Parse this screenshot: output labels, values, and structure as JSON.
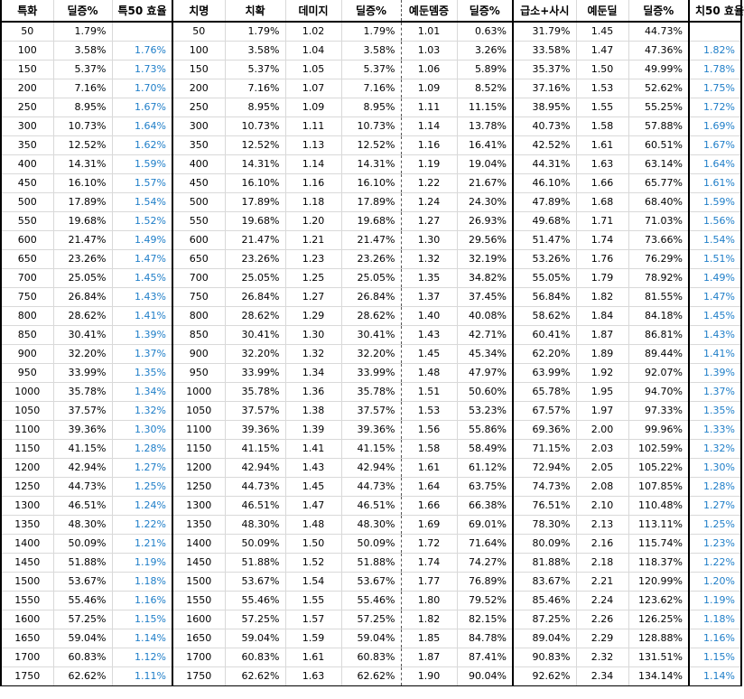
{
  "headers": [
    "특화",
    "딜증%",
    "특50 효율",
    "치명",
    "치확",
    "데미지",
    "딜증%",
    "예둔뎀증",
    "딜증%",
    "급소+사시",
    "예둔딜",
    "딜증%",
    "치50 효율"
  ],
  "rows": [
    [
      "50",
      "1.79%",
      "",
      "50",
      "1.79%",
      "1.02",
      "1.79%",
      "1.01",
      "0.63%",
      "31.79%",
      "1.45",
      "44.73%",
      ""
    ],
    [
      "100",
      "3.58%",
      "1.76%",
      "100",
      "3.58%",
      "1.04",
      "3.58%",
      "1.03",
      "3.26%",
      "33.58%",
      "1.47",
      "47.36%",
      "1.82%"
    ],
    [
      "150",
      "5.37%",
      "1.73%",
      "150",
      "5.37%",
      "1.05",
      "5.37%",
      "1.06",
      "5.89%",
      "35.37%",
      "1.50",
      "49.99%",
      "1.78%"
    ],
    [
      "200",
      "7.16%",
      "1.70%",
      "200",
      "7.16%",
      "1.07",
      "7.16%",
      "1.09",
      "8.52%",
      "37.16%",
      "1.53",
      "52.62%",
      "1.75%"
    ],
    [
      "250",
      "8.95%",
      "1.67%",
      "250",
      "8.95%",
      "1.09",
      "8.95%",
      "1.11",
      "11.15%",
      "38.95%",
      "1.55",
      "55.25%",
      "1.72%"
    ],
    [
      "300",
      "10.73%",
      "1.64%",
      "300",
      "10.73%",
      "1.11",
      "10.73%",
      "1.14",
      "13.78%",
      "40.73%",
      "1.58",
      "57.88%",
      "1.69%"
    ],
    [
      "350",
      "12.52%",
      "1.62%",
      "350",
      "12.52%",
      "1.13",
      "12.52%",
      "1.16",
      "16.41%",
      "42.52%",
      "1.61",
      "60.51%",
      "1.67%"
    ],
    [
      "400",
      "14.31%",
      "1.59%",
      "400",
      "14.31%",
      "1.14",
      "14.31%",
      "1.19",
      "19.04%",
      "44.31%",
      "1.63",
      "63.14%",
      "1.64%"
    ],
    [
      "450",
      "16.10%",
      "1.57%",
      "450",
      "16.10%",
      "1.16",
      "16.10%",
      "1.22",
      "21.67%",
      "46.10%",
      "1.66",
      "65.77%",
      "1.61%"
    ],
    [
      "500",
      "17.89%",
      "1.54%",
      "500",
      "17.89%",
      "1.18",
      "17.89%",
      "1.24",
      "24.30%",
      "47.89%",
      "1.68",
      "68.40%",
      "1.59%"
    ],
    [
      "550",
      "19.68%",
      "1.52%",
      "550",
      "19.68%",
      "1.20",
      "19.68%",
      "1.27",
      "26.93%",
      "49.68%",
      "1.71",
      "71.03%",
      "1.56%"
    ],
    [
      "600",
      "21.47%",
      "1.49%",
      "600",
      "21.47%",
      "1.21",
      "21.47%",
      "1.30",
      "29.56%",
      "51.47%",
      "1.74",
      "73.66%",
      "1.54%"
    ],
    [
      "650",
      "23.26%",
      "1.47%",
      "650",
      "23.26%",
      "1.23",
      "23.26%",
      "1.32",
      "32.19%",
      "53.26%",
      "1.76",
      "76.29%",
      "1.51%"
    ],
    [
      "700",
      "25.05%",
      "1.45%",
      "700",
      "25.05%",
      "1.25",
      "25.05%",
      "1.35",
      "34.82%",
      "55.05%",
      "1.79",
      "78.92%",
      "1.49%"
    ],
    [
      "750",
      "26.84%",
      "1.43%",
      "750",
      "26.84%",
      "1.27",
      "26.84%",
      "1.37",
      "37.45%",
      "56.84%",
      "1.82",
      "81.55%",
      "1.47%"
    ],
    [
      "800",
      "28.62%",
      "1.41%",
      "800",
      "28.62%",
      "1.29",
      "28.62%",
      "1.40",
      "40.08%",
      "58.62%",
      "1.84",
      "84.18%",
      "1.45%"
    ],
    [
      "850",
      "30.41%",
      "1.39%",
      "850",
      "30.41%",
      "1.30",
      "30.41%",
      "1.43",
      "42.71%",
      "60.41%",
      "1.87",
      "86.81%",
      "1.43%"
    ],
    [
      "900",
      "32.20%",
      "1.37%",
      "900",
      "32.20%",
      "1.32",
      "32.20%",
      "1.45",
      "45.34%",
      "62.20%",
      "1.89",
      "89.44%",
      "1.41%"
    ],
    [
      "950",
      "33.99%",
      "1.35%",
      "950",
      "33.99%",
      "1.34",
      "33.99%",
      "1.48",
      "47.97%",
      "63.99%",
      "1.92",
      "92.07%",
      "1.39%"
    ],
    [
      "1000",
      "35.78%",
      "1.34%",
      "1000",
      "35.78%",
      "1.36",
      "35.78%",
      "1.51",
      "50.60%",
      "65.78%",
      "1.95",
      "94.70%",
      "1.37%"
    ],
    [
      "1050",
      "37.57%",
      "1.32%",
      "1050",
      "37.57%",
      "1.38",
      "37.57%",
      "1.53",
      "53.23%",
      "67.57%",
      "1.97",
      "97.33%",
      "1.35%"
    ],
    [
      "1100",
      "39.36%",
      "1.30%",
      "1100",
      "39.36%",
      "1.39",
      "39.36%",
      "1.56",
      "55.86%",
      "69.36%",
      "2.00",
      "99.96%",
      "1.33%"
    ],
    [
      "1150",
      "41.15%",
      "1.28%",
      "1150",
      "41.15%",
      "1.41",
      "41.15%",
      "1.58",
      "58.49%",
      "71.15%",
      "2.03",
      "102.59%",
      "1.32%"
    ],
    [
      "1200",
      "42.94%",
      "1.27%",
      "1200",
      "42.94%",
      "1.43",
      "42.94%",
      "1.61",
      "61.12%",
      "72.94%",
      "2.05",
      "105.22%",
      "1.30%"
    ],
    [
      "1250",
      "44.73%",
      "1.25%",
      "1250",
      "44.73%",
      "1.45",
      "44.73%",
      "1.64",
      "63.75%",
      "74.73%",
      "2.08",
      "107.85%",
      "1.28%"
    ],
    [
      "1300",
      "46.51%",
      "1.24%",
      "1300",
      "46.51%",
      "1.47",
      "46.51%",
      "1.66",
      "66.38%",
      "76.51%",
      "2.10",
      "110.48%",
      "1.27%"
    ],
    [
      "1350",
      "48.30%",
      "1.22%",
      "1350",
      "48.30%",
      "1.48",
      "48.30%",
      "1.69",
      "69.01%",
      "78.30%",
      "2.13",
      "113.11%",
      "1.25%"
    ],
    [
      "1400",
      "50.09%",
      "1.21%",
      "1400",
      "50.09%",
      "1.50",
      "50.09%",
      "1.72",
      "71.64%",
      "80.09%",
      "2.16",
      "115.74%",
      "1.23%"
    ],
    [
      "1450",
      "51.88%",
      "1.19%",
      "1450",
      "51.88%",
      "1.52",
      "51.88%",
      "1.74",
      "74.27%",
      "81.88%",
      "2.18",
      "118.37%",
      "1.22%"
    ],
    [
      "1500",
      "53.67%",
      "1.18%",
      "1500",
      "53.67%",
      "1.54",
      "53.67%",
      "1.77",
      "76.89%",
      "83.67%",
      "2.21",
      "120.99%",
      "1.20%"
    ],
    [
      "1550",
      "55.46%",
      "1.16%",
      "1550",
      "55.46%",
      "1.55",
      "55.46%",
      "1.80",
      "79.52%",
      "85.46%",
      "2.24",
      "123.62%",
      "1.19%"
    ],
    [
      "1600",
      "57.25%",
      "1.15%",
      "1600",
      "57.25%",
      "1.57",
      "57.25%",
      "1.82",
      "82.15%",
      "87.25%",
      "2.26",
      "126.25%",
      "1.18%"
    ],
    [
      "1650",
      "59.04%",
      "1.14%",
      "1650",
      "59.04%",
      "1.59",
      "59.04%",
      "1.85",
      "84.78%",
      "89.04%",
      "2.29",
      "128.88%",
      "1.16%"
    ],
    [
      "1700",
      "60.83%",
      "1.12%",
      "1700",
      "60.83%",
      "1.61",
      "60.83%",
      "1.87",
      "87.41%",
      "90.83%",
      "2.32",
      "131.51%",
      "1.15%"
    ],
    [
      "1750",
      "62.62%",
      "1.11%",
      "1750",
      "62.62%",
      "1.63",
      "62.62%",
      "1.90",
      "90.04%",
      "92.62%",
      "2.34",
      "134.14%",
      "1.14%"
    ]
  ],
  "colors": {
    "efficiency_text": "#1f7ec8",
    "grid": "#d9d9d9",
    "border": "#000000"
  }
}
